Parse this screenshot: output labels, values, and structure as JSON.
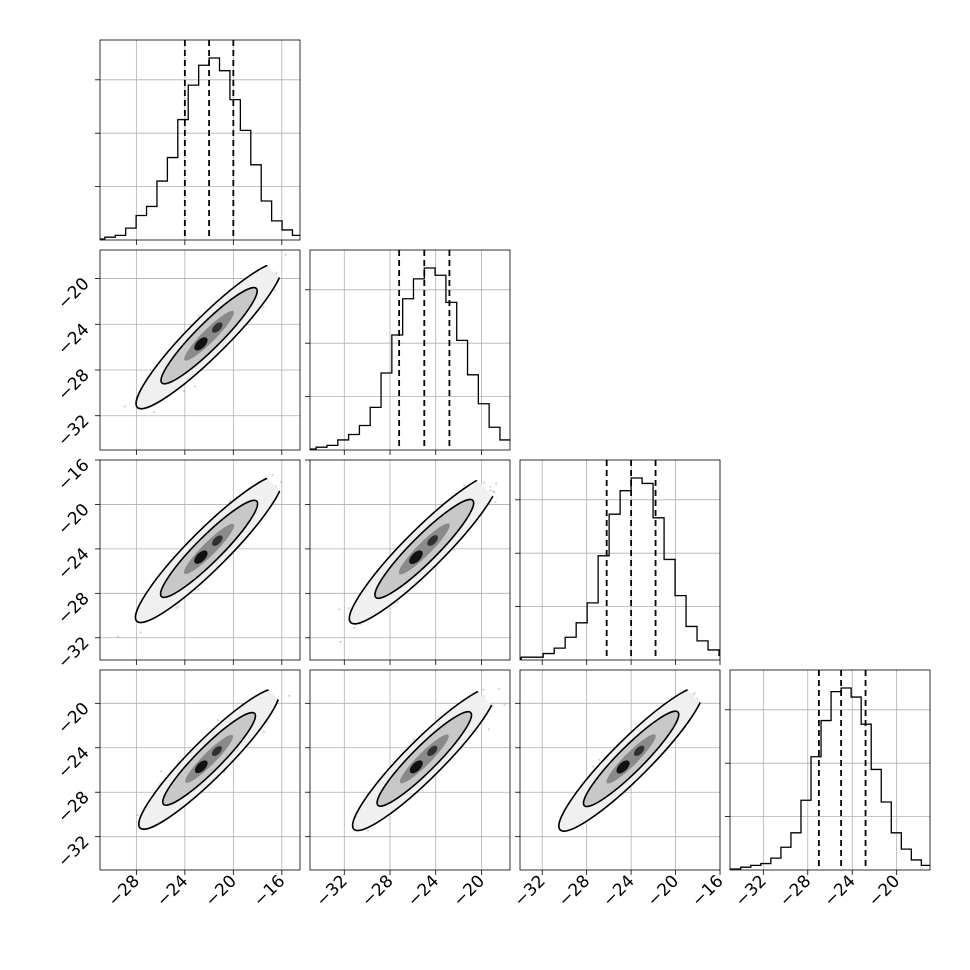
{
  "chart_data": {
    "type": "corner",
    "parameters": [
      {
        "mean": -22,
        "sigma": 2,
        "lo": -24,
        "median": -22,
        "hi": -20,
        "xlim": [
          -31,
          -14.5
        ],
        "xticks": [
          -28,
          -24,
          -20,
          -16
        ],
        "xtick_labels": [
          "−28",
          "−24",
          "−20",
          "−16"
        ],
        "yticks": [
          -32,
          -28,
          -24,
          -20
        ],
        "ytick_labels": [
          "−32",
          "−28",
          "−24",
          "−20"
        ],
        "hist_counts": [
          0.01,
          0.02,
          0.06,
          0.13,
          0.18,
          0.32,
          0.45,
          0.66,
          0.85,
          0.96,
          1.0,
          0.93,
          0.77,
          0.6,
          0.41,
          0.21,
          0.1,
          0.05,
          0.02,
          0.01
        ]
      },
      {
        "mean": -25,
        "sigma": 2.2,
        "lo": -27.2,
        "median": -25,
        "hi": -22.8,
        "xlim": [
          -35,
          -17.5
        ],
        "xticks": [
          -32,
          -28,
          -24,
          -20
        ],
        "xtick_labels": [
          "−32",
          "−28",
          "−24",
          "−20"
        ],
        "yticks": [
          -32,
          -28,
          -24,
          -20,
          -16
        ],
        "ytick_labels": [
          "−32",
          "−28",
          "−24",
          "−20",
          "−16"
        ],
        "hist_counts": [
          0.01,
          0.02,
          0.05,
          0.08,
          0.13,
          0.23,
          0.42,
          0.63,
          0.83,
          0.94,
          1.0,
          0.96,
          0.81,
          0.6,
          0.41,
          0.25,
          0.12,
          0.05,
          0.02,
          0.01
        ]
      },
      {
        "mean": -24,
        "sigma": 2.3,
        "lo": -26.2,
        "median": -24,
        "hi": -21.8,
        "xlim": [
          -34,
          -16
        ],
        "xticks": [
          -32,
          -28,
          -24,
          -20,
          -16
        ],
        "xtick_labels": [
          "−32",
          "−28",
          "−24",
          "−20",
          "−16"
        ],
        "yticks": [
          -32,
          -28,
          -24,
          -20
        ],
        "ytick_labels": [
          "−32",
          "−28",
          "−24",
          "−20"
        ],
        "hist_counts": [
          0.01,
          0.01,
          0.03,
          0.06,
          0.12,
          0.2,
          0.31,
          0.57,
          0.8,
          0.93,
          1.0,
          0.97,
          0.78,
          0.55,
          0.35,
          0.18,
          0.1,
          0.05,
          0.02,
          0.01
        ]
      },
      {
        "mean": -25,
        "sigma": 2.1,
        "lo": -27,
        "median": -25,
        "hi": -22.8,
        "xlim": [
          -35,
          -17
        ],
        "xticks": [
          -32,
          -28,
          -24,
          -20
        ],
        "xtick_labels": [
          "−32",
          "−28",
          "−24",
          "−20"
        ],
        "yticks": [],
        "ytick_labels": [],
        "hist_counts": [
          0.01,
          0.02,
          0.03,
          0.06,
          0.12,
          0.2,
          0.38,
          0.62,
          0.82,
          0.98,
          1.0,
          0.95,
          0.8,
          0.55,
          0.37,
          0.2,
          0.11,
          0.05,
          0.02,
          0.01
        ]
      }
    ],
    "correlation": 0.93,
    "quantiles": [
      0.16,
      0.5,
      0.84
    ],
    "grid": true,
    "colors": {
      "line": "#000000",
      "grid": "#b0b0b0",
      "points": "#7f7f7f",
      "contour_fill_outer": "#f0f0f0",
      "contour_fill_mid": "#c8c8c8",
      "contour_fill_inner": "#8a8a8a",
      "core": "#111111"
    }
  }
}
